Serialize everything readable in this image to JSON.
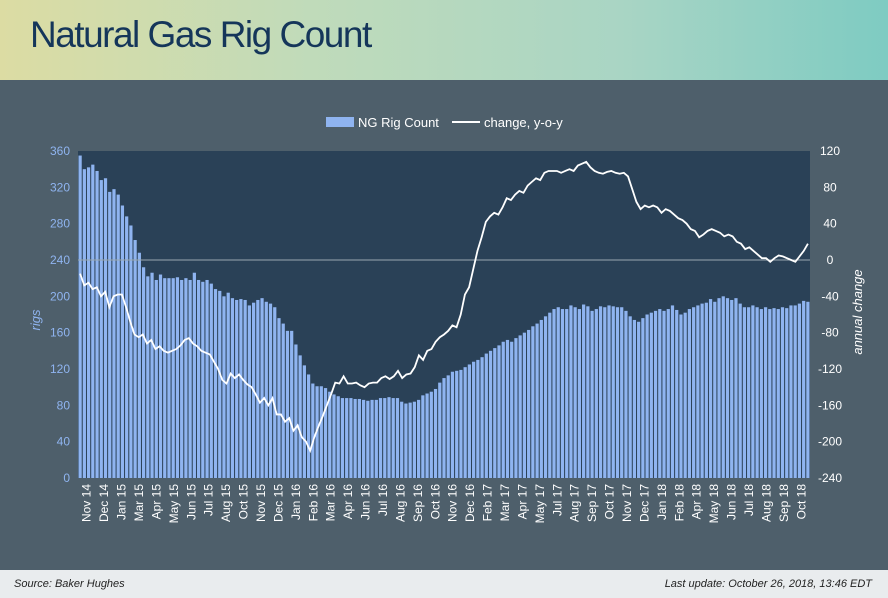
{
  "header": {
    "title": "Natural Gas Rig Count"
  },
  "footer": {
    "source": "Source: Baker Hughes",
    "last_update": "Last update: October 26, 2018, 13:46 EDT"
  },
  "colors": {
    "bars": "#8fb4f0",
    "line": "#ffffff",
    "plot_bg": "#2a4157",
    "panel_bg": "#4e5f6b"
  },
  "chart_data": {
    "type": "bar",
    "title": "Natural Gas Rig Count",
    "ylabel": "rigs",
    "y2label": "annual change",
    "ylim": [
      0,
      360
    ],
    "y2lim": [
      -240,
      120
    ],
    "yticks": [
      0,
      40,
      80,
      120,
      160,
      200,
      240,
      280,
      320,
      360
    ],
    "y2ticks": [
      -240,
      -200,
      -160,
      -120,
      -80,
      -40,
      0,
      40,
      80,
      120
    ],
    "grid": false,
    "legend_position": "top-center",
    "x_tick_labels": [
      "Nov 14",
      "Dec 14",
      "Jan 15",
      "Mar 15",
      "Apr 15",
      "May 15",
      "Jun 15",
      "Jul 15",
      "Aug 15",
      "Oct 15",
      "Nov 15",
      "Dec 15",
      "Jan 16",
      "Feb 16",
      "Mar 16",
      "Apr 16",
      "Jun 16",
      "Jul 16",
      "Aug 16",
      "Sep 16",
      "Oct 16",
      "Nov 16",
      "Dec 16",
      "Feb 17",
      "Mar 17",
      "Apr 17",
      "May 17",
      "Jul 17",
      "Aug 17",
      "Sep 17",
      "Oct 17",
      "Nov 17",
      "Dec 17",
      "Jan 18",
      "Feb 18",
      "Apr 18",
      "May 18",
      "Jun 18",
      "Jul 18",
      "Aug 18",
      "Sep 18",
      "Oct 18"
    ],
    "series": [
      {
        "name": "NG Rig Count",
        "type": "bar",
        "axis": "left",
        "values": [
          355,
          340,
          342,
          345,
          338,
          328,
          330,
          315,
          318,
          312,
          300,
          288,
          278,
          262,
          248,
          232,
          222,
          226,
          218,
          224,
          220,
          220,
          220,
          221,
          218,
          220,
          218,
          226,
          218,
          216,
          218,
          214,
          208,
          206,
          200,
          204,
          198,
          196,
          197,
          196,
          190,
          193,
          196,
          198,
          194,
          192,
          188,
          176,
          170,
          162,
          162,
          147,
          135,
          124,
          114,
          104,
          101,
          101,
          99,
          95,
          92,
          90,
          88,
          88,
          88,
          87,
          87,
          86,
          85,
          86,
          86,
          88,
          88,
          89,
          88,
          88,
          84,
          82,
          83,
          84,
          86,
          91,
          93,
          95,
          98,
          105,
          110,
          113,
          117,
          118,
          119,
          122,
          125,
          128,
          130,
          133,
          137,
          140,
          143,
          146,
          150,
          152,
          150,
          154,
          157,
          160,
          163,
          167,
          170,
          174,
          178,
          182,
          186,
          188,
          186,
          186,
          190,
          188,
          186,
          191,
          189,
          184,
          186,
          189,
          188,
          190,
          189,
          188,
          188,
          184,
          178,
          174,
          172,
          176,
          180,
          182,
          184,
          186,
          184,
          186,
          190,
          185,
          180,
          182,
          186,
          188,
          190,
          192,
          193,
          197,
          194,
          198,
          200,
          198,
          196,
          198,
          192,
          188,
          188,
          190,
          188,
          186,
          188,
          186,
          187,
          186,
          188,
          187,
          190,
          190,
          192,
          195,
          194
        ]
      },
      {
        "name": "change, y-o-y",
        "type": "line",
        "axis": "right",
        "values": [
          -15,
          -28,
          -25,
          -32,
          -30,
          -40,
          -35,
          -52,
          -40,
          -38,
          -38,
          -52,
          -68,
          -82,
          -85,
          -82,
          -92,
          -88,
          -98,
          -95,
          -100,
          -102,
          -100,
          -98,
          -94,
          -88,
          -86,
          -92,
          -95,
          -100,
          -102,
          -104,
          -112,
          -120,
          -132,
          -136,
          -125,
          -130,
          -126,
          -132,
          -137,
          -140,
          -148,
          -157,
          -152,
          -160,
          -152,
          -170,
          -170,
          -178,
          -174,
          -188,
          -182,
          -195,
          -200,
          -210,
          -195,
          -183,
          -172,
          -160,
          -148,
          -135,
          -136,
          -128,
          -136,
          -136,
          -135,
          -138,
          -140,
          -136,
          -135,
          -135,
          -130,
          -128,
          -131,
          -128,
          -122,
          -130,
          -126,
          -125,
          -118,
          -105,
          -110,
          -100,
          -98,
          -90,
          -85,
          -82,
          -78,
          -72,
          -74,
          -60,
          -38,
          -30,
          -10,
          10,
          25,
          42,
          48,
          52,
          50,
          58,
          68,
          66,
          72,
          76,
          74,
          82,
          86,
          90,
          88,
          96,
          98,
          98,
          98,
          96,
          98,
          100,
          98,
          104,
          106,
          108,
          102,
          98,
          96,
          95,
          97,
          98,
          96,
          95,
          96,
          92,
          78,
          64,
          56,
          60,
          58,
          60,
          58,
          52,
          56,
          54,
          50,
          46,
          44,
          40,
          34,
          32,
          25,
          28,
          32,
          34,
          32,
          30,
          26,
          28,
          26,
          20,
          18,
          12,
          14,
          10,
          6,
          2,
          2,
          -2,
          2,
          5,
          4,
          2,
          0,
          -2,
          4,
          10,
          18
        ]
      }
    ]
  }
}
